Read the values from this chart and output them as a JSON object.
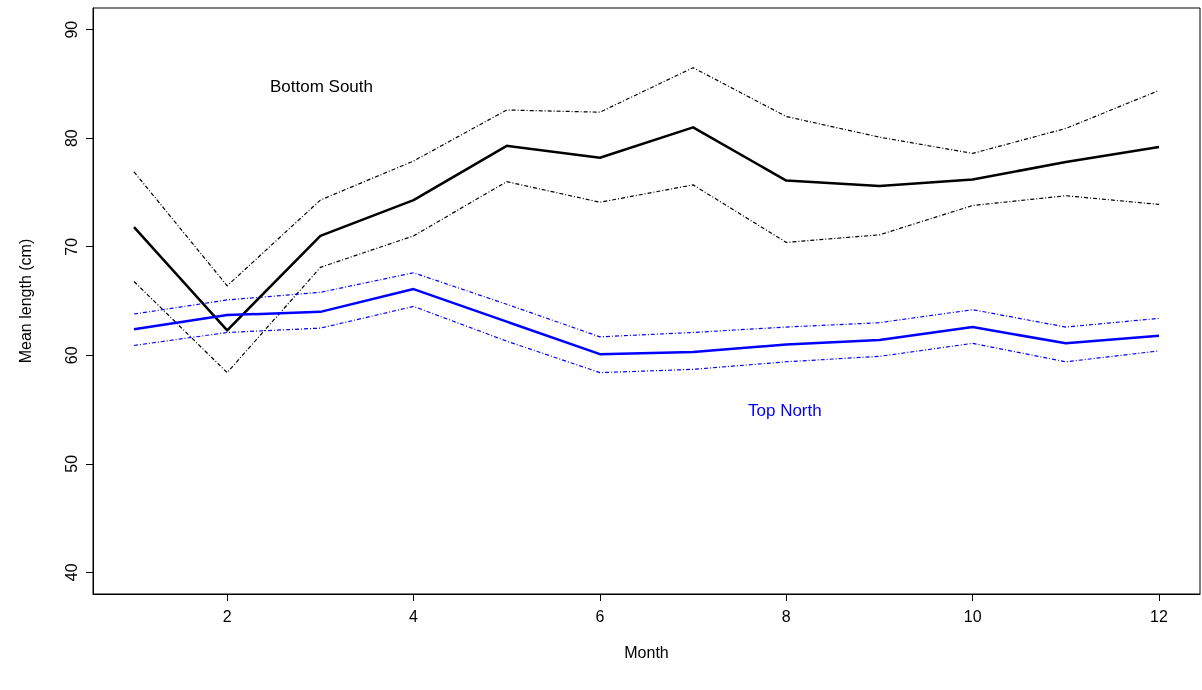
{
  "chart_data": {
    "type": "line",
    "xlabel": "Month",
    "ylabel": "Mean length (cm)",
    "x": [
      1,
      2,
      3,
      4,
      5,
      6,
      7,
      8,
      9,
      10,
      11,
      12
    ],
    "series": [
      {
        "name": "Bottom South",
        "color": "#000000",
        "values": [
          71.8,
          62.3,
          71.0,
          74.3,
          79.3,
          78.2,
          81.0,
          76.1,
          75.6,
          76.2,
          77.8,
          79.2
        ]
      },
      {
        "name": "Top North",
        "color": "#0000ff",
        "values": [
          62.4,
          63.7,
          64.0,
          66.1,
          63.1,
          60.1,
          60.3,
          61.0,
          61.4,
          62.6,
          61.1,
          61.8
        ]
      },
      {
        "color": "#000000",
        "line_style": "dashed",
        "values": [
          66.8,
          58.4,
          68.1,
          71.0,
          76.0,
          74.1,
          75.7,
          70.4,
          71.1,
          73.8,
          74.7,
          73.9
        ]
      },
      {
        "color": "#000000",
        "line_style": "dashed",
        "values": [
          76.9,
          66.4,
          74.3,
          77.9,
          82.6,
          82.4,
          86.5,
          82.0,
          80.1,
          78.6,
          80.9,
          84.4
        ]
      },
      {
        "color": "#0000ff",
        "line_style": "dashed",
        "values": [
          60.9,
          62.1,
          62.5,
          64.5,
          61.3,
          58.4,
          58.7,
          59.4,
          59.9,
          61.1,
          59.4,
          60.4
        ]
      },
      {
        "color": "#0000ff",
        "line_style": "dashed",
        "values": [
          63.8,
          65.1,
          65.8,
          67.6,
          64.7,
          61.7,
          62.1,
          62.6,
          63.0,
          64.2,
          62.6,
          63.4
        ]
      }
    ],
    "xlim": [
      0.56,
      12.44
    ],
    "xticks": [
      2,
      4,
      6,
      8,
      10,
      12
    ],
    "ylim": [
      38,
      92
    ],
    "yticks": [
      40,
      50,
      60,
      70,
      80,
      90
    ],
    "grid": false,
    "marker": "none",
    "line_style": "solid"
  }
}
